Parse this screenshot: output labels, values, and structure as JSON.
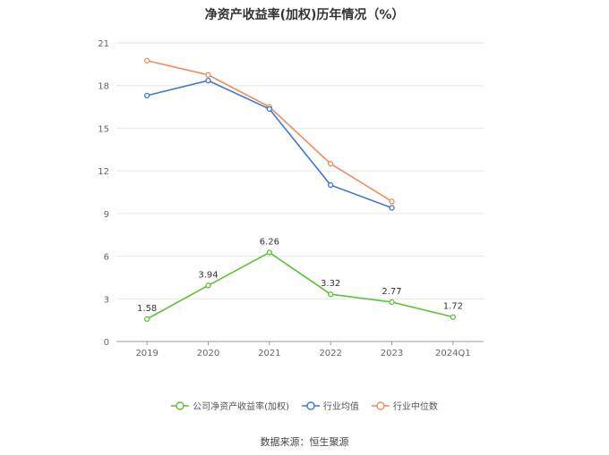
{
  "chart_data": {
    "type": "line",
    "title": "净资产收益率(加权)历年情况（%）",
    "categories": [
      "2019",
      "2020",
      "2021",
      "2022",
      "2023",
      "2024Q1"
    ],
    "ylim": [
      0,
      21
    ],
    "yticks": [
      0,
      3,
      6,
      9,
      12,
      15,
      18,
      21
    ],
    "grid": true,
    "legend_position": "bottom",
    "series": [
      {
        "name": "公司净资产收益率(加权)",
        "color": "#5bc236",
        "values": [
          1.58,
          3.94,
          6.26,
          3.32,
          2.77,
          1.72
        ],
        "labels": [
          "1.58",
          "3.94",
          "6.26",
          "3.32",
          "2.77",
          "1.72"
        ]
      },
      {
        "name": "行业均值",
        "color": "#3b78d8",
        "values": [
          17.3,
          18.35,
          16.35,
          11.0,
          9.4,
          null
        ]
      },
      {
        "name": "行业中位数",
        "color": "#f28b5c",
        "values": [
          19.75,
          18.75,
          16.5,
          12.5,
          9.85,
          null
        ]
      }
    ]
  },
  "source": "数据来源：恒生聚源"
}
